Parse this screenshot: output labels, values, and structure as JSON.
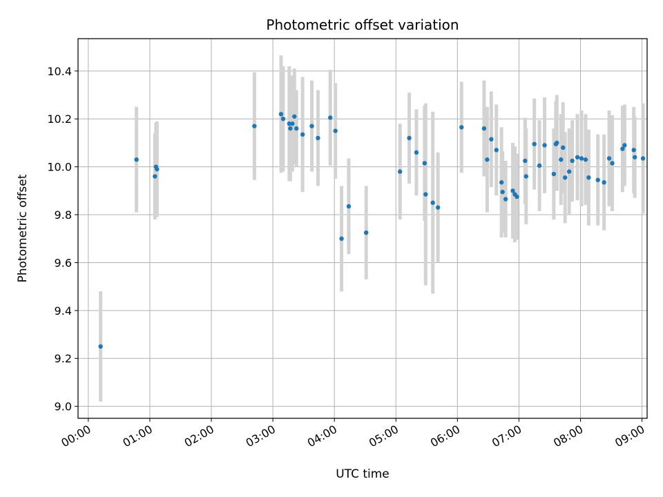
{
  "chart_data": {
    "type": "scatter",
    "title": "Photometric offset variation",
    "xlabel": "UTC time",
    "ylabel": "Photometric offset",
    "grid": true,
    "xlim_minutes": [
      -10,
      545
    ],
    "ylim": [
      8.95,
      10.535
    ],
    "x_ticks": [
      {
        "minutes": 0,
        "label": "00:00"
      },
      {
        "minutes": 60,
        "label": "01:00"
      },
      {
        "minutes": 120,
        "label": "02:00"
      },
      {
        "minutes": 180,
        "label": "03:00"
      },
      {
        "minutes": 240,
        "label": "04:00"
      },
      {
        "minutes": 300,
        "label": "05:00"
      },
      {
        "minutes": 360,
        "label": "06:00"
      },
      {
        "minutes": 420,
        "label": "07:00"
      },
      {
        "minutes": 480,
        "label": "08:00"
      },
      {
        "minutes": 540,
        "label": "09:00"
      }
    ],
    "y_ticks": [
      {
        "value": 9.0,
        "label": "9.0"
      },
      {
        "value": 9.2,
        "label": "9.2"
      },
      {
        "value": 9.4,
        "label": "9.4"
      },
      {
        "value": 9.6,
        "label": "9.6"
      },
      {
        "value": 9.8,
        "label": "9.8"
      },
      {
        "value": 10.0,
        "label": "10.0"
      },
      {
        "value": 10.2,
        "label": "10.2"
      },
      {
        "value": 10.4,
        "label": "10.4"
      }
    ],
    "colors": {
      "point": "#1f77b4",
      "errorbar": "#d3d3d3",
      "grid": "#b0b0b0",
      "axis": "#000000"
    },
    "series": [
      {
        "name": "offset",
        "x_minutes": [
          12,
          47,
          65,
          66,
          67,
          162,
          188,
          190,
          196,
          197,
          199,
          201,
          203,
          209,
          218,
          224,
          236,
          241,
          247,
          254,
          271,
          304,
          313,
          320,
          328,
          329,
          336,
          341,
          364,
          386,
          389,
          393,
          398,
          403,
          404,
          407,
          414,
          416,
          418,
          426,
          427,
          435,
          440,
          445,
          454,
          456,
          457,
          461,
          463,
          465,
          469,
          472,
          477,
          481,
          485,
          488,
          497,
          503,
          508,
          511,
          521,
          523,
          532,
          533,
          541
        ],
        "y": [
          9.25,
          10.03,
          9.96,
          10.0,
          9.99,
          10.17,
          10.22,
          10.2,
          10.18,
          10.16,
          10.18,
          10.21,
          10.16,
          10.135,
          10.17,
          10.12,
          10.205,
          10.15,
          9.7,
          9.835,
          9.725,
          9.98,
          10.12,
          10.06,
          10.015,
          9.885,
          9.85,
          9.83,
          10.165,
          10.16,
          10.03,
          10.115,
          10.07,
          9.935,
          9.895,
          9.865,
          9.9,
          9.885,
          9.875,
          10.025,
          9.96,
          10.095,
          10.005,
          10.09,
          9.97,
          10.095,
          10.1,
          10.03,
          10.08,
          9.955,
          9.98,
          10.025,
          10.04,
          10.035,
          10.03,
          9.955,
          9.945,
          9.935,
          10.035,
          10.015,
          10.075,
          10.09,
          10.07,
          10.04,
          10.035
        ],
        "err": [
          0.23,
          0.22,
          0.18,
          0.185,
          0.2,
          0.225,
          0.245,
          0.22,
          0.24,
          0.22,
          0.2,
          0.2,
          0.16,
          0.24,
          0.19,
          0.2,
          0.2,
          0.2,
          0.22,
          0.2,
          0.195,
          0.2,
          0.19,
          0.18,
          0.24,
          0.38,
          0.38,
          0.23,
          0.19,
          0.2,
          0.22,
          0.2,
          0.19,
          0.23,
          0.17,
          0.16,
          0.2,
          0.2,
          0.18,
          0.18,
          0.2,
          0.19,
          0.19,
          0.2,
          0.19,
          0.18,
          0.2,
          0.19,
          0.19,
          0.19,
          0.18,
          0.17,
          0.18,
          0.2,
          0.19,
          0.2,
          0.19,
          0.2,
          0.2,
          0.2,
          0.18,
          0.17,
          0.18,
          0.17,
          0.23
        ]
      }
    ]
  }
}
